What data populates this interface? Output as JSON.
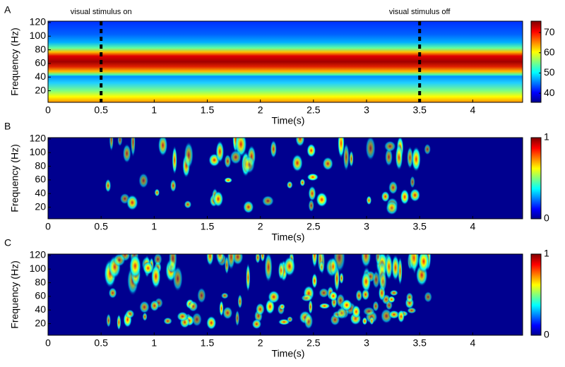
{
  "chart_data": [
    {
      "type": "heatmap",
      "panel_label": "A",
      "xlabel": "Time(s)",
      "ylabel": "Frequency (Hz)",
      "xlim": [
        0,
        4.47
      ],
      "xticks": [
        0,
        0.5,
        1,
        1.5,
        2,
        2.5,
        3,
        3.5,
        4
      ],
      "ylim": [
        3,
        122
      ],
      "yticks": [
        20,
        40,
        60,
        80,
        100,
        120
      ],
      "colormap": "jet",
      "clim": [
        35.5,
        75.6
      ],
      "cticks": [
        40,
        50,
        60,
        70
      ],
      "annotations": [
        {
          "text": "visual stimulus on",
          "x": 0.5
        },
        {
          "text": "visual stimulus off",
          "x": 3.5
        }
      ]
    },
    {
      "type": "heatmap",
      "panel_label": "B",
      "xlabel": "Time(s)",
      "ylabel": "Frequency (Hz)",
      "xlim": [
        0,
        4.47
      ],
      "xticks": [
        0,
        0.5,
        1,
        1.5,
        2,
        2.5,
        3,
        3.5,
        4
      ],
      "ylim": [
        3,
        122
      ],
      "yticks": [
        20,
        40,
        60,
        80,
        100,
        120
      ],
      "colormap": "jet",
      "clim": [
        0,
        1
      ],
      "cticks": [
        0,
        1
      ]
    },
    {
      "type": "heatmap",
      "panel_label": "C",
      "xlabel": "Time(s)",
      "ylabel": "Frequency (Hz)",
      "xlim": [
        0,
        4.47
      ],
      "xticks": [
        0,
        0.5,
        1,
        1.5,
        2,
        2.5,
        3,
        3.5,
        4
      ],
      "ylim": [
        3,
        122
      ],
      "yticks": [
        20,
        40,
        60,
        80,
        100,
        120
      ],
      "colormap": "jet",
      "clim": [
        0,
        1
      ],
      "cticks": [
        0,
        1
      ]
    }
  ]
}
